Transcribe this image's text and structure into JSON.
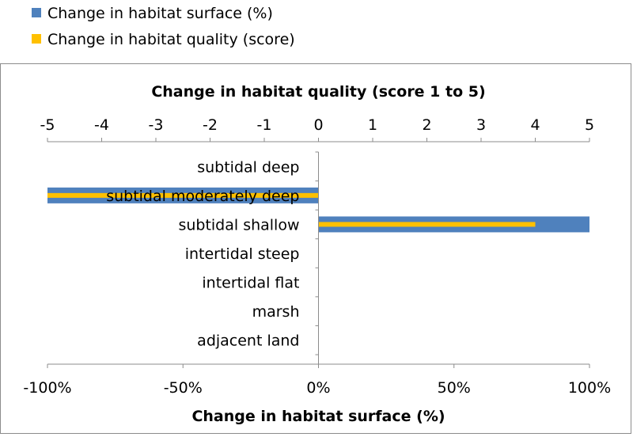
{
  "chart_data": {
    "type": "bar",
    "orientation": "horizontal",
    "categories": [
      "subtidal deep",
      "subtidal moderately deep",
      "subtidal shallow",
      "intertidal steep",
      "intertidal flat",
      "marsh",
      "adjacent land"
    ],
    "series": [
      {
        "name": "Change in habitat surface (%)",
        "axis": "bottom",
        "color": "#4f81bd",
        "values": [
          0,
          -100,
          100,
          0,
          0,
          0,
          0
        ]
      },
      {
        "name": "Change in habitat quality (score)",
        "axis": "top",
        "color": "#ffc000",
        "values": [
          0,
          -5,
          4,
          0,
          0,
          0,
          0
        ]
      }
    ],
    "top_axis": {
      "label": "Change in habitat quality (score 1 to 5)",
      "range": [
        -5,
        5
      ],
      "ticks": [
        "-5",
        "-4",
        "-3",
        "-2",
        "-1",
        "0",
        "1",
        "2",
        "3",
        "4",
        "5"
      ]
    },
    "bottom_axis": {
      "label": "Change in habitat surface (%)",
      "range": [
        -100,
        100
      ],
      "ticks": [
        "-100%",
        "-50%",
        "0%",
        "50%",
        "100%"
      ]
    },
    "legend_placement": "top-left",
    "grid": false
  }
}
